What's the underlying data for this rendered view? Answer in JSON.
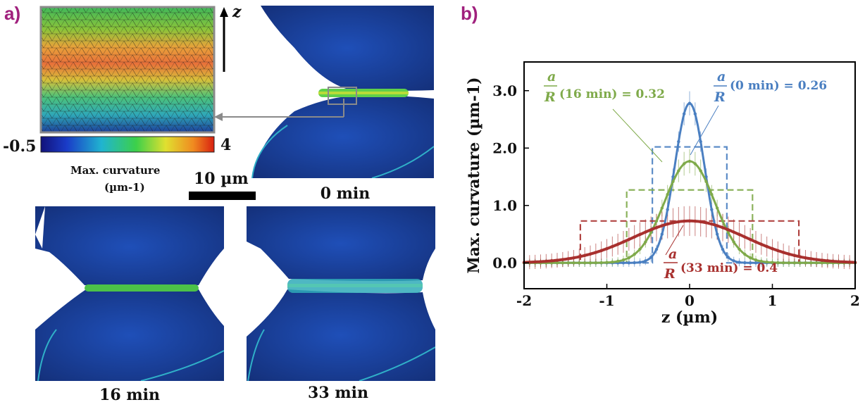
{
  "panel_a": {
    "label": "a)",
    "axis_label": "z",
    "colorbar": {
      "min_label": "-0.5",
      "max_label": "4",
      "title_line1": "Max. curvature",
      "title_line2": "(µm-1)"
    },
    "scalebar_label": "10 µm",
    "time_labels": [
      "0 min",
      "16 min",
      "33 min"
    ]
  },
  "panel_b": {
    "label": "b)"
  },
  "colors": {
    "blue": "#4a7fc1",
    "blue_dark": "#2a5a9a",
    "green": "#7faa4a",
    "red": "#a8302e",
    "label_purple": "#a0207d"
  },
  "chart_data": {
    "type": "line",
    "xlabel": "z (µm)",
    "ylabel": "Max. curvature (µm-1)",
    "xlim": [
      -2,
      2
    ],
    "ylim": [
      -0.45,
      3.5
    ],
    "xticks": [
      "-2",
      "-1",
      "0",
      "1",
      "2"
    ],
    "xtick_values": [
      -2,
      -1,
      0,
      1,
      2
    ],
    "yticks": [
      "0.0",
      "1.0",
      "2.0",
      "3.0"
    ],
    "ytick_values": [
      0,
      1,
      2,
      3
    ],
    "series": [
      {
        "time": "0 min",
        "color": "#4a7fc1",
        "peak": 2.78,
        "width": 0.18,
        "step_height": 2.02,
        "step_half_width": 0.45
      },
      {
        "time": "16 min",
        "color": "#7faa4a",
        "peak": 1.77,
        "width": 0.3,
        "step_height": 1.27,
        "step_half_width": 0.76
      },
      {
        "time": "33 min",
        "color": "#a8302e",
        "peak": 0.73,
        "width": 0.68,
        "step_height": 0.73,
        "step_half_width": 1.32
      }
    ],
    "annotations": [
      {
        "frac_num": "a",
        "frac_den": "R",
        "text": "(0 min) = 0.26",
        "color": "#4a7fc1"
      },
      {
        "frac_num": "a",
        "frac_den": "R",
        "text": "(16 min) = 0.32",
        "color": "#7faa4a"
      },
      {
        "frac_num": "a",
        "frac_den": "R",
        "text": "(33 min) = 0.4",
        "color": "#a8302e"
      }
    ]
  }
}
